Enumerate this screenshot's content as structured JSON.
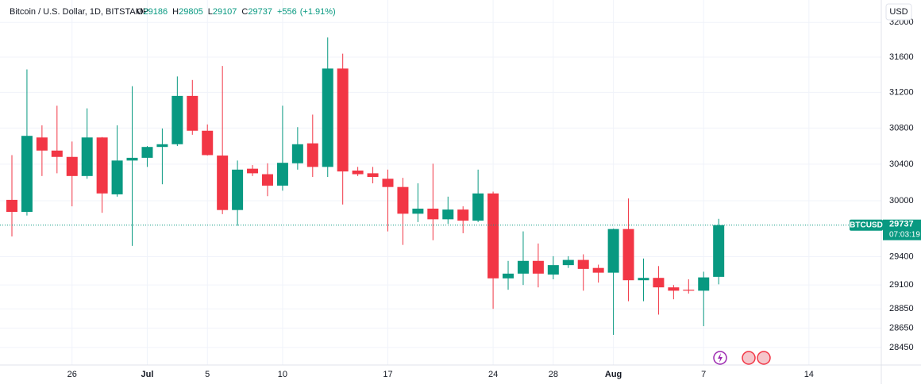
{
  "chart_data": {
    "type": "candlestick",
    "title": "Bitcoin / U.S. Dollar, 1D, BITSTAMP",
    "ohlc_labels": [
      "O",
      "H",
      "L",
      "C"
    ],
    "change": {
      "value": 556,
      "label": "+556"
    },
    "change_percent": {
      "value": 1.91,
      "label": "(+1.91%)"
    },
    "currency": "USD",
    "countdown": "07:03:19",
    "categories": [
      null,
      null,
      null,
      null,
      "26",
      null,
      null,
      null,
      null,
      "Jul",
      null,
      null,
      null,
      "5",
      null,
      null,
      null,
      null,
      "10",
      null,
      null,
      null,
      null,
      null,
      null,
      "17",
      null,
      null,
      null,
      null,
      null,
      null,
      "24",
      null,
      null,
      null,
      "28",
      null,
      null,
      null,
      "Aug",
      null,
      null,
      null,
      null,
      null,
      "7",
      null,
      null,
      null,
      null,
      null,
      null,
      "14"
    ],
    "series": [
      {
        "name": "BTCUSD",
        "up_color": "#089981",
        "down_color": "#f23645",
        "open": [
          30010,
          29880,
          30695,
          30550,
          30480,
          30270,
          30695,
          30070,
          30440,
          30470,
          30590,
          30620,
          31160,
          30770,
          30495,
          29900,
          30350,
          30290,
          30165,
          30410,
          30630,
          30370,
          31470,
          30330,
          30300,
          30240,
          30150,
          29860,
          29915,
          29800,
          29905,
          29785,
          30080,
          29170,
          29220,
          29355,
          29210,
          29310,
          29365,
          29280,
          29230,
          29695,
          29150,
          29175,
          29075,
          29050,
          29040,
          29186,
          null,
          null,
          null,
          null,
          null,
          null
        ],
        "high": [
          30500,
          31460,
          30830,
          31050,
          30650,
          31020,
          30700,
          30830,
          31270,
          30600,
          30795,
          31380,
          31340,
          30840,
          31500,
          30440,
          30390,
          30410,
          31050,
          30810,
          30950,
          31826,
          31640,
          30370,
          30370,
          30340,
          30250,
          30190,
          30405,
          30045,
          29940,
          30340,
          30100,
          29355,
          29670,
          29540,
          29405,
          29405,
          29425,
          29315,
          29700,
          30025,
          29380,
          29300,
          29100,
          29160,
          29240,
          29805,
          null,
          null,
          null,
          null,
          null,
          null
        ],
        "low": [
          29615,
          29840,
          30270,
          30300,
          29940,
          30240,
          29870,
          30045,
          29515,
          30370,
          30180,
          30600,
          30725,
          30495,
          29855,
          29730,
          30270,
          30050,
          30110,
          30340,
          30260,
          30260,
          29960,
          30270,
          30190,
          29670,
          29525,
          29770,
          29575,
          29750,
          29650,
          29770,
          28850,
          29050,
          29100,
          29075,
          29160,
          29280,
          29040,
          29125,
          28580,
          28930,
          28930,
          28790,
          28950,
          29010,
          28670,
          29107,
          null,
          null,
          null,
          null,
          null,
          null
        ],
        "close": [
          29880,
          30713,
          30550,
          30480,
          30270,
          30695,
          30080,
          30440,
          30470,
          30590,
          30620,
          31160,
          30770,
          30500,
          29900,
          30340,
          30300,
          30165,
          30415,
          30620,
          30370,
          31470,
          30320,
          30290,
          30260,
          30150,
          29860,
          29915,
          29800,
          29905,
          29785,
          30080,
          29170,
          29220,
          29355,
          29220,
          29310,
          29365,
          29270,
          29230,
          29695,
          29150,
          29175,
          29075,
          29040,
          29040,
          29180,
          29737,
          null,
          null,
          null,
          null,
          null,
          null
        ]
      }
    ],
    "log_scale": true,
    "ylim": [
      28270,
      32260
    ],
    "yticks": [
      28450,
      28650,
      28850,
      29100,
      29400,
      30000,
      30400,
      30800,
      31200,
      31600,
      32000
    ],
    "grid": true
  }
}
